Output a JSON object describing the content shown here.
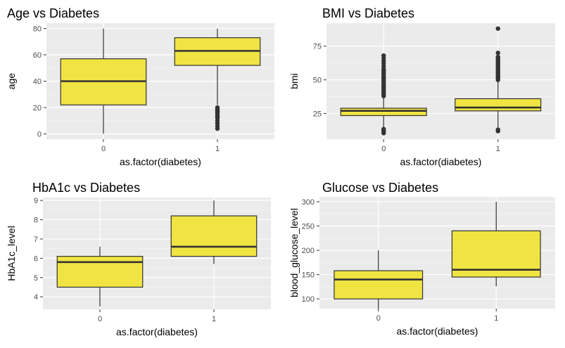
{
  "style": {
    "panel_bg": "#ebebeb",
    "grid_major": "#ffffff",
    "box_fill": "#f0e442",
    "box_stroke": "#333333",
    "outlier_color": "#333333"
  },
  "chart_data": [
    {
      "type": "boxplot",
      "title": "Age vs Diabetes",
      "xlabel": "as.factor(diabetes)",
      "ylabel": "age",
      "categories": [
        "0",
        "1"
      ],
      "ylim": [
        -4,
        84
      ],
      "yticks": [
        0,
        20,
        40,
        60,
        80
      ],
      "yticklabels": [
        "0",
        "20",
        "40",
        "60",
        "80"
      ],
      "boxes": [
        {
          "category": "0",
          "whisker_low": 0.1,
          "q1": 22,
          "median": 40,
          "q3": 57,
          "whisker_high": 80,
          "outliers": []
        },
        {
          "category": "1",
          "whisker_low": 22,
          "q1": 52,
          "median": 63,
          "q3": 73,
          "whisker_high": 80,
          "outliers": [
            4,
            6,
            8,
            10,
            12,
            13,
            14,
            15,
            16,
            17,
            18,
            19,
            20
          ]
        }
      ]
    },
    {
      "type": "boxplot",
      "title": "BMI vs Diabetes",
      "xlabel": "as.factor(diabetes)",
      "ylabel": "bmi",
      "categories": [
        "0",
        "1"
      ],
      "ylim": [
        6,
        92
      ],
      "yticks": [
        25,
        50,
        75
      ],
      "yticklabels": [
        "25",
        "50",
        "75"
      ],
      "boxes": [
        {
          "category": "0",
          "whisker_low": 14,
          "q1": 23.5,
          "median": 27,
          "q3": 29,
          "whisker_high": 37,
          "outliers": [
            10.5,
            11.5,
            12.5,
            13.5,
            38,
            39,
            40,
            41,
            42,
            43,
            44,
            45,
            46,
            47,
            48,
            49,
            50,
            51,
            52,
            53,
            54,
            55,
            56,
            57,
            58,
            60,
            62,
            64,
            66,
            68
          ]
        },
        {
          "category": "1",
          "whisker_low": 14,
          "q1": 27,
          "median": 29.5,
          "q3": 36,
          "whisker_high": 49,
          "outliers": [
            12,
            13,
            50,
            51,
            52,
            53,
            54,
            55,
            56,
            57,
            58,
            59,
            60,
            61,
            62,
            63,
            64,
            65,
            66,
            67,
            70,
            88
          ]
        }
      ]
    },
    {
      "type": "boxplot",
      "title": "HbA1c vs Diabetes",
      "xlabel": "as.factor(diabetes)",
      "ylabel": "HbA1c_level",
      "categories": [
        "0",
        "1"
      ],
      "ylim": [
        3.35,
        9.15
      ],
      "yticks": [
        4,
        5,
        6,
        7,
        8,
        9
      ],
      "yticklabels": [
        "4",
        "5",
        "6",
        "7",
        "8",
        "9"
      ],
      "boxes": [
        {
          "category": "0",
          "whisker_low": 3.5,
          "q1": 4.5,
          "median": 5.8,
          "q3": 6.1,
          "whisker_high": 6.6,
          "outliers": []
        },
        {
          "category": "1",
          "whisker_low": 5.7,
          "q1": 6.1,
          "median": 6.6,
          "q3": 8.2,
          "whisker_high": 9.0,
          "outliers": []
        }
      ]
    },
    {
      "type": "boxplot",
      "title": "Glucose vs Diabetes",
      "xlabel": "as.factor(diabetes)",
      "ylabel": "blood_glucose_level",
      "categories": [
        "0",
        "1"
      ],
      "ylim": [
        80,
        310
      ],
      "yticks": [
        100,
        150,
        200,
        250,
        300
      ],
      "yticklabels": [
        "100",
        "150",
        "200",
        "250",
        "300"
      ],
      "boxes": [
        {
          "category": "0",
          "whisker_low": 80,
          "q1": 100,
          "median": 140,
          "q3": 158,
          "whisker_high": 200,
          "outliers": []
        },
        {
          "category": "1",
          "whisker_low": 126,
          "q1": 145,
          "median": 160,
          "q3": 240,
          "whisker_high": 300,
          "outliers": []
        }
      ]
    }
  ]
}
